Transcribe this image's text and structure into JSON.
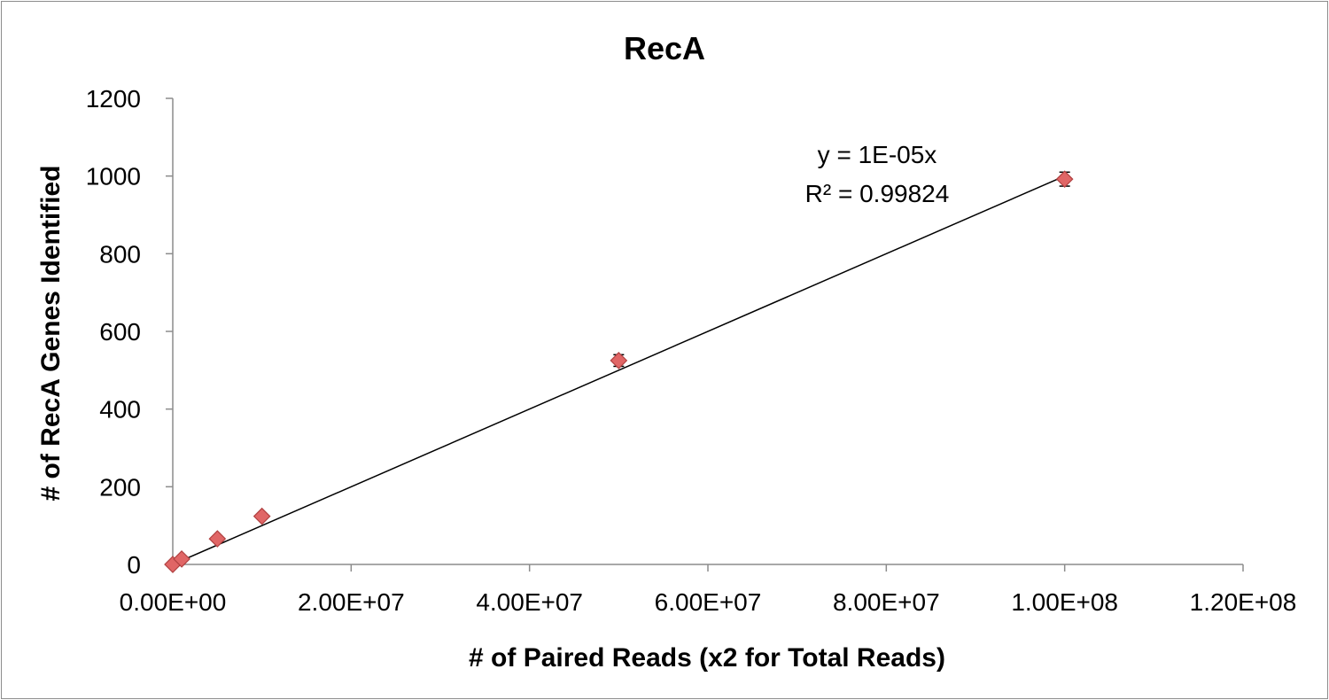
{
  "chart_data": {
    "type": "scatter",
    "title": "RecA",
    "xlabel": "# of Paired Reads (x2 for Total Reads)",
    "ylabel": "# of RecA Genes Identified",
    "xlim": [
      0,
      120000000
    ],
    "ylim": [
      0,
      1200
    ],
    "x_ticks": [
      0,
      20000000,
      40000000,
      60000000,
      80000000,
      100000000,
      120000000
    ],
    "x_tick_labels": [
      "0.00E+00",
      "2.00E+07",
      "4.00E+07",
      "6.00E+07",
      "8.00E+07",
      "1.00E+08",
      "1.20E+08"
    ],
    "y_ticks": [
      0,
      200,
      400,
      600,
      800,
      1000,
      1200
    ],
    "y_tick_labels": [
      "0",
      "200",
      "400",
      "600",
      "800",
      "1000",
      "1200"
    ],
    "grid": false,
    "legend": "none",
    "series": [
      {
        "points": [
          {
            "x": 0,
            "y": 0,
            "err": 3
          },
          {
            "x": 1000000,
            "y": 14,
            "err": 4
          },
          {
            "x": 5000000,
            "y": 66,
            "err": 5
          },
          {
            "x": 10000000,
            "y": 124,
            "err": 6
          },
          {
            "x": 50000000,
            "y": 525,
            "err": 15
          },
          {
            "x": 100000000,
            "y": 992,
            "err": 18
          }
        ],
        "marker": "diamond",
        "color": "#e06666",
        "edge_color": "#b04040"
      }
    ],
    "trendline": {
      "type": "linear",
      "slope": 1e-05,
      "intercept": 0,
      "x_range": [
        0,
        100000000
      ],
      "equation": "y = 1E-05x",
      "r_squared": "R² = 0.99824"
    }
  }
}
